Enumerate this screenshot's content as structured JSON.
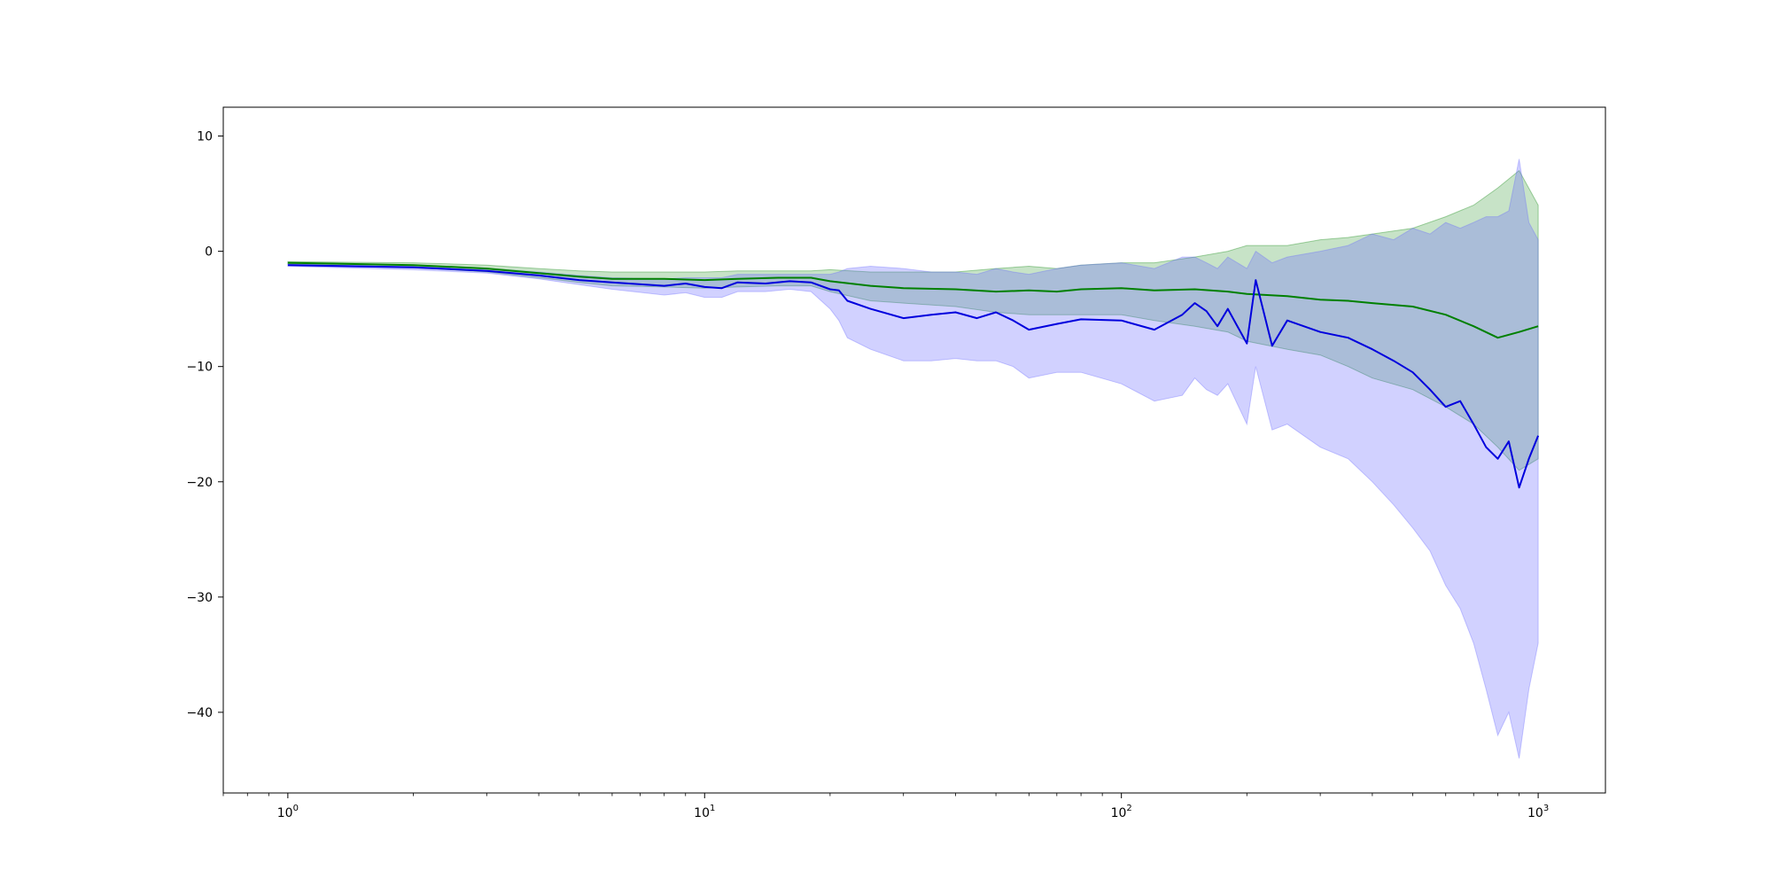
{
  "chart_data": {
    "type": "line",
    "title": "",
    "xlabel": "",
    "ylabel": "",
    "xscale": "log",
    "xlim": [
      0.7,
      1450
    ],
    "ylim": [
      -47,
      12.5
    ],
    "grid": false,
    "legend": "none",
    "x_ticks": [
      {
        "base": "10",
        "exp": "0",
        "value": 1
      },
      {
        "base": "10",
        "exp": "1",
        "value": 10
      },
      {
        "base": "10",
        "exp": "2",
        "value": 100
      },
      {
        "base": "10",
        "exp": "3",
        "value": 1000
      }
    ],
    "y_ticks": [
      {
        "label": "10",
        "value": 10
      },
      {
        "label": "0",
        "value": 0
      },
      {
        "label": "−10",
        "value": -10
      },
      {
        "label": "−20",
        "value": -20
      },
      {
        "label": "−30",
        "value": -30
      },
      {
        "label": "−40",
        "value": -40
      }
    ],
    "series": [
      {
        "color": "#008000",
        "band_color": "#008000",
        "x": [
          1,
          2,
          3,
          4,
          5,
          6,
          8,
          10,
          12,
          15,
          18,
          20,
          25,
          30,
          40,
          50,
          60,
          70,
          80,
          100,
          120,
          150,
          180,
          200,
          250,
          300,
          350,
          400,
          500,
          600,
          700,
          800,
          900,
          1000
        ],
        "mean": [
          -1.0,
          -1.2,
          -1.5,
          -1.9,
          -2.2,
          -2.4,
          -2.4,
          -2.5,
          -2.4,
          -2.3,
          -2.3,
          -2.6,
          -3.0,
          -3.2,
          -3.3,
          -3.5,
          -3.4,
          -3.5,
          -3.3,
          -3.2,
          -3.4,
          -3.3,
          -3.5,
          -3.7,
          -3.9,
          -4.2,
          -4.3,
          -4.5,
          -4.8,
          -5.5,
          -6.5,
          -7.5,
          -7.0,
          -6.5
        ],
        "upper": [
          -0.9,
          -1.0,
          -1.2,
          -1.5,
          -1.7,
          -1.8,
          -1.8,
          -1.8,
          -1.7,
          -1.7,
          -1.7,
          -1.6,
          -1.8,
          -1.8,
          -1.8,
          -1.5,
          -1.3,
          -1.5,
          -1.2,
          -1.0,
          -1.0,
          -0.5,
          0.0,
          0.5,
          0.5,
          1.0,
          1.2,
          1.5,
          2.0,
          3.0,
          4.0,
          5.5,
          7.0,
          4.0
        ],
        "lower": [
          -1.1,
          -1.4,
          -1.8,
          -2.3,
          -2.7,
          -3.0,
          -3.1,
          -3.2,
          -3.1,
          -3.0,
          -3.0,
          -3.5,
          -4.3,
          -4.5,
          -4.8,
          -5.3,
          -5.5,
          -5.5,
          -5.5,
          -5.5,
          -6.0,
          -6.5,
          -7.0,
          -7.8,
          -8.5,
          -9.0,
          -10.0,
          -11.0,
          -12.0,
          -13.5,
          -15.0,
          -17.0,
          -19.0,
          -18.0
        ]
      },
      {
        "color": "#0000dd",
        "band_color": "#6666ff",
        "x": [
          1,
          2,
          3,
          4,
          5,
          6,
          8,
          9,
          10,
          11,
          12,
          14,
          16,
          18,
          20,
          21,
          22,
          25,
          30,
          35,
          40,
          45,
          50,
          55,
          60,
          70,
          80,
          100,
          120,
          140,
          150,
          160,
          170,
          180,
          200,
          210,
          230,
          250,
          300,
          350,
          400,
          450,
          500,
          550,
          600,
          650,
          700,
          750,
          800,
          850,
          900,
          950,
          1000
        ],
        "mean": [
          -1.2,
          -1.4,
          -1.7,
          -2.1,
          -2.5,
          -2.7,
          -3.0,
          -2.8,
          -3.1,
          -3.2,
          -2.7,
          -2.8,
          -2.6,
          -2.7,
          -3.3,
          -3.4,
          -4.3,
          -5.0,
          -5.8,
          -5.5,
          -5.3,
          -5.8,
          -5.3,
          -6.0,
          -6.8,
          -6.3,
          -5.9,
          -6.0,
          -6.8,
          -5.5,
          -4.5,
          -5.2,
          -6.5,
          -5.0,
          -8.0,
          -2.5,
          -8.2,
          -6.0,
          -7.0,
          -7.5,
          -8.5,
          -9.5,
          -10.5,
          -12.0,
          -13.5,
          -13.0,
          -15.0,
          -17.0,
          -18.0,
          -16.5,
          -20.5,
          -18.0,
          -16.0
        ],
        "upper": [
          -1.1,
          -1.3,
          -1.5,
          -1.8,
          -2.1,
          -2.3,
          -2.4,
          -2.3,
          -2.3,
          -2.3,
          -2.0,
          -2.0,
          -2.0,
          -2.0,
          -2.0,
          -1.8,
          -1.5,
          -1.3,
          -1.5,
          -1.8,
          -1.8,
          -2.0,
          -1.5,
          -1.8,
          -2.0,
          -1.5,
          -1.2,
          -1.0,
          -1.5,
          -0.5,
          -0.5,
          -1.0,
          -1.5,
          -0.5,
          -1.5,
          0.0,
          -1.0,
          -0.5,
          0.0,
          0.5,
          1.5,
          1.0,
          2.0,
          1.5,
          2.5,
          2.0,
          2.5,
          3.0,
          3.0,
          3.5,
          8.0,
          2.5,
          1.0
        ],
        "lower": [
          -1.3,
          -1.6,
          -1.9,
          -2.4,
          -2.9,
          -3.3,
          -3.8,
          -3.6,
          -4.0,
          -4.0,
          -3.5,
          -3.5,
          -3.3,
          -3.5,
          -5.0,
          -6.0,
          -7.5,
          -8.5,
          -9.5,
          -9.5,
          -9.3,
          -9.5,
          -9.5,
          -10.0,
          -11.0,
          -10.5,
          -10.5,
          -11.5,
          -13.0,
          -12.5,
          -11.0,
          -12.0,
          -12.5,
          -11.5,
          -15.0,
          -10.0,
          -15.5,
          -15.0,
          -17.0,
          -18.0,
          -20.0,
          -22.0,
          -24.0,
          -26.0,
          -29.0,
          -31.0,
          -34.0,
          -38.0,
          -42.0,
          -40.0,
          -44.0,
          -38.0,
          -34.0
        ]
      }
    ]
  }
}
